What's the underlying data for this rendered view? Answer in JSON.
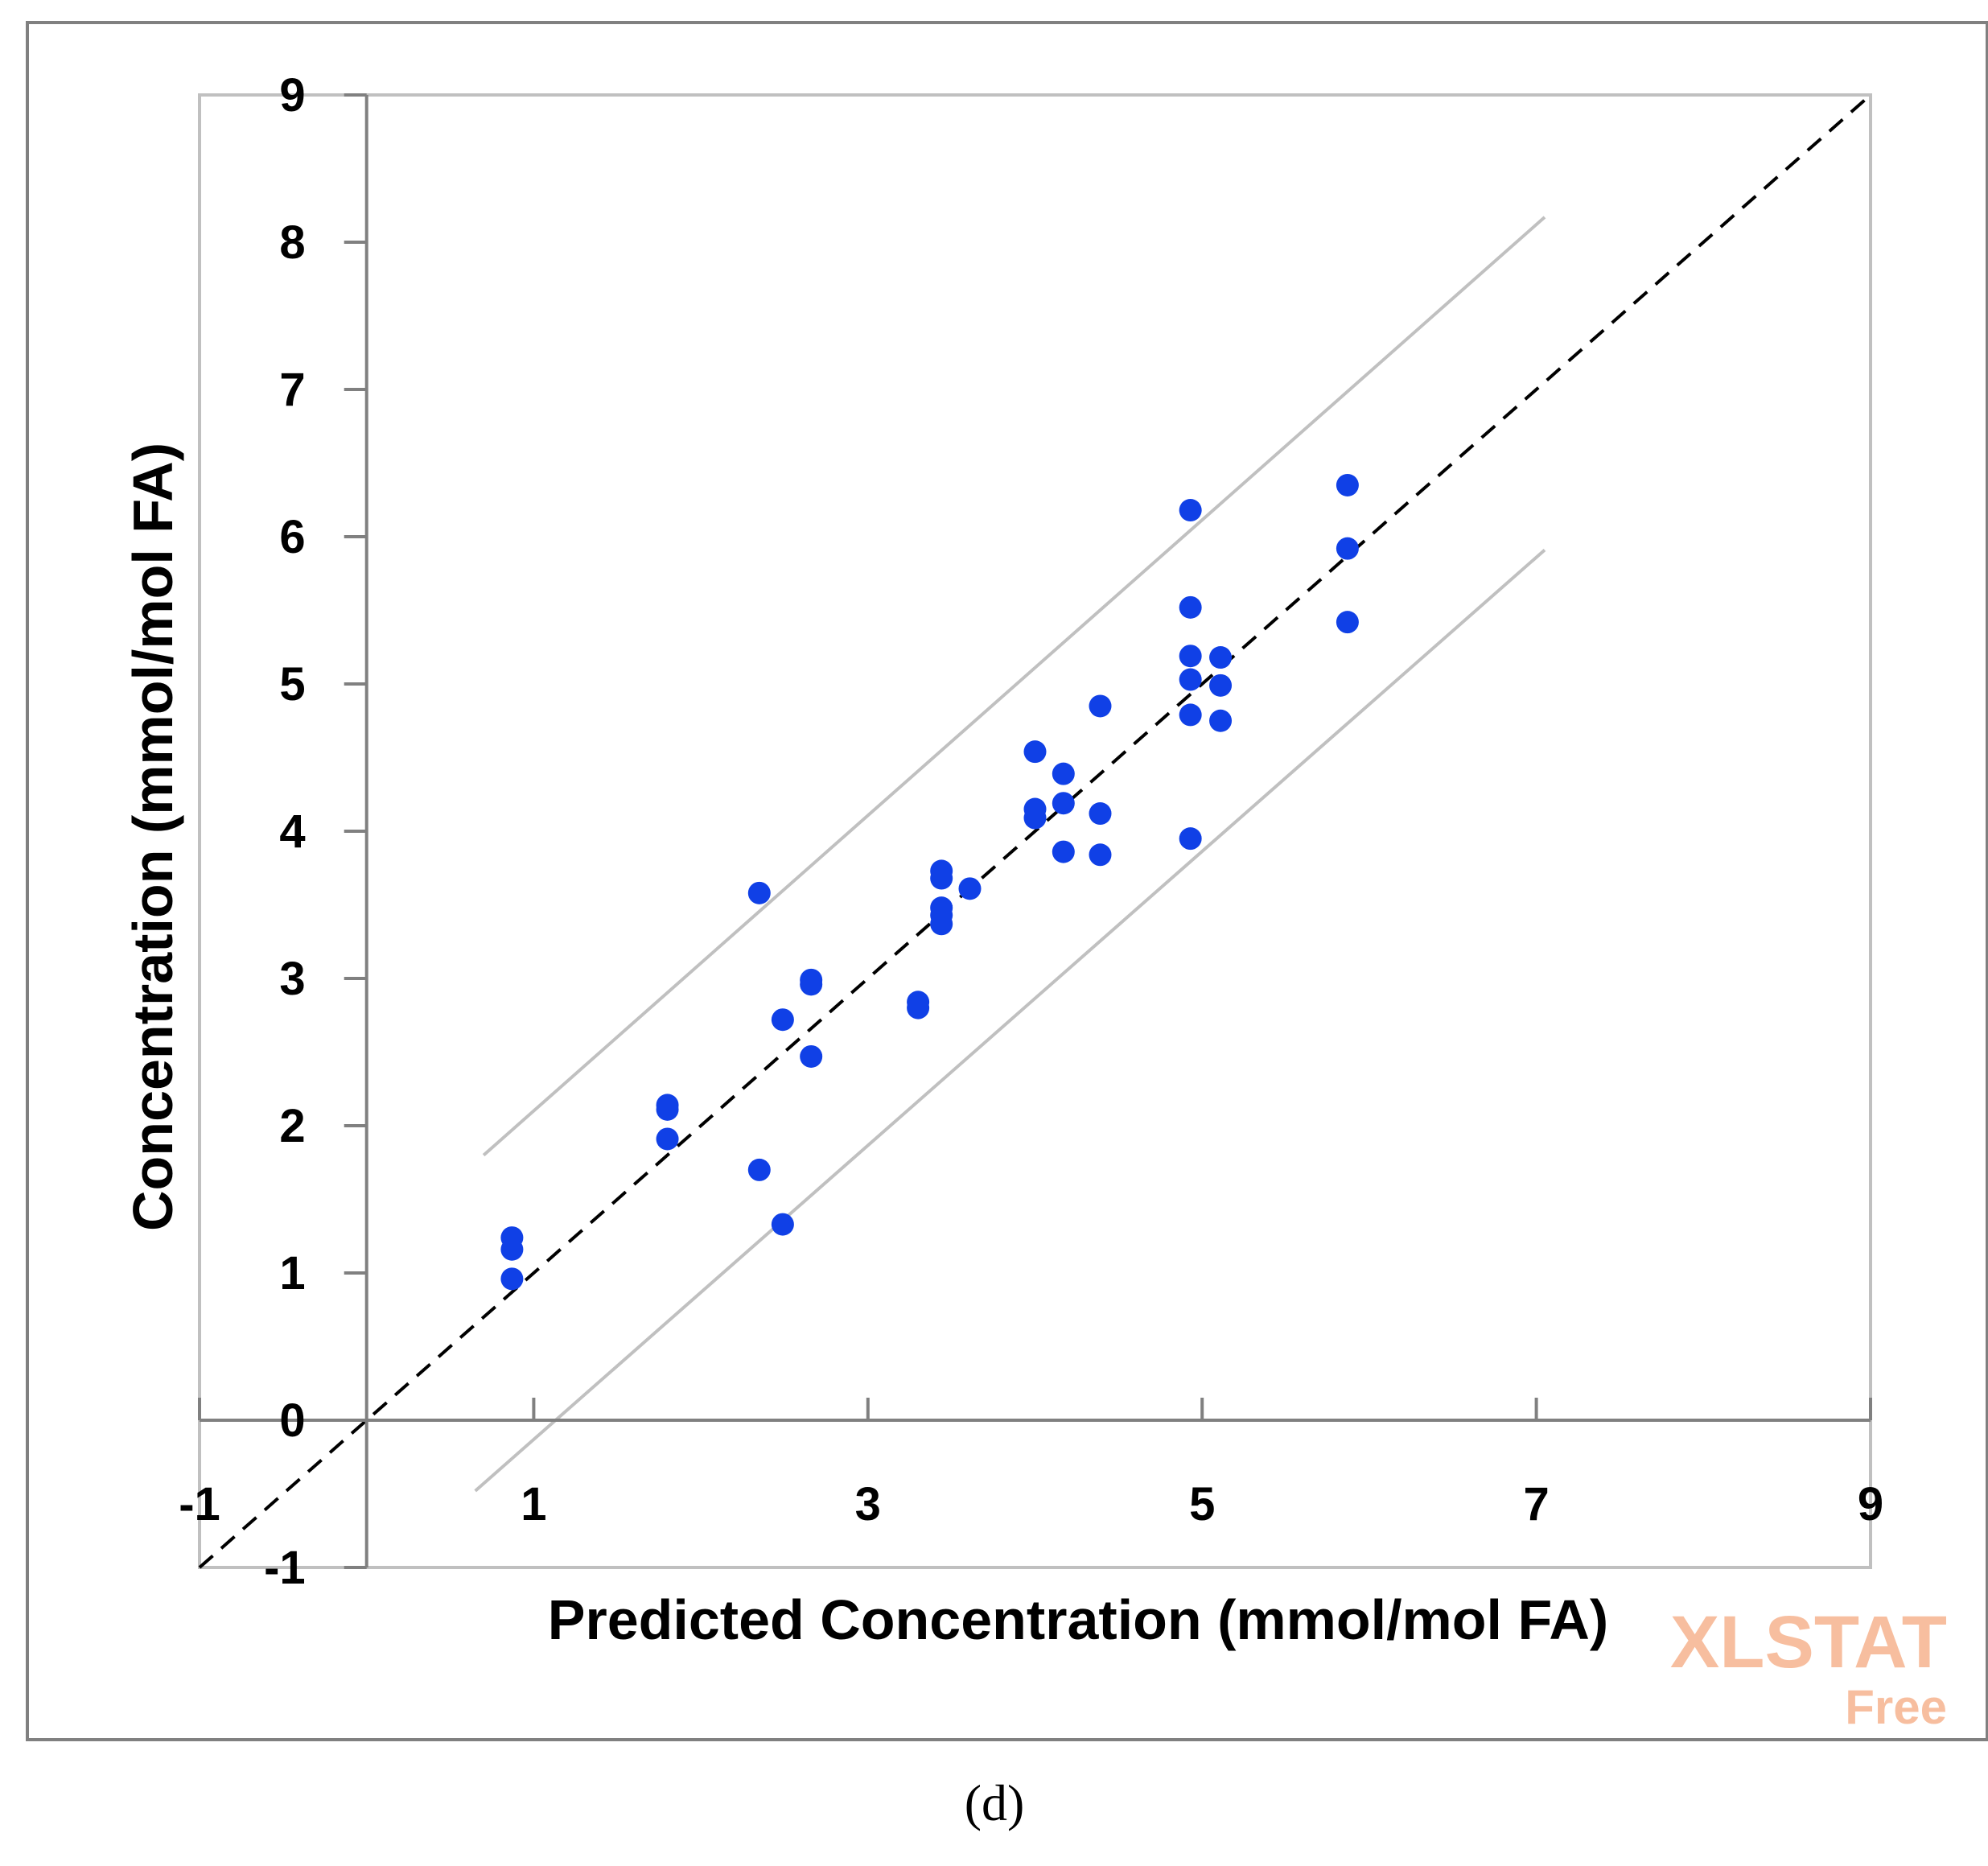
{
  "caption": "(d)",
  "watermark": {
    "brand": "XLSTAT",
    "edition": "Free"
  },
  "colors": {
    "points": "#1040e6",
    "bands": "#c0c0c0",
    "axes": "#808080",
    "frame": "#808080",
    "diagonal": "#000000",
    "watermark": "#f5a97f"
  },
  "chart_data": {
    "type": "scatter",
    "xlabel": "Predicted Concentration (mmol/mol FA)",
    "ylabel": "Concentration (mmol/mol FA)",
    "xlim": [
      -1,
      9
    ],
    "ylim": [
      -1,
      9
    ],
    "x_ticks": [
      -1,
      1,
      3,
      5,
      7,
      9
    ],
    "x_tick_labels": [
      "-1",
      "1",
      "3",
      "5",
      "7",
      "9"
    ],
    "y_ticks": [
      -1,
      0,
      1,
      2,
      3,
      4,
      5,
      6,
      7,
      8,
      9
    ],
    "y_tick_labels": [
      "-1",
      "0",
      "1",
      "2",
      "3",
      "4",
      "5",
      "6",
      "7",
      "8",
      "9"
    ],
    "identity_line": {
      "style": "dashed",
      "from": [
        -1,
        -1
      ],
      "to": [
        9,
        9
      ]
    },
    "confidence_bands": [
      {
        "name": "upper",
        "from": [
          0.7,
          1.8
        ],
        "to": [
          7.05,
          8.17
        ]
      },
      {
        "name": "lower",
        "from": [
          0.65,
          -0.48
        ],
        "to": [
          7.05,
          5.91
        ]
      }
    ],
    "points": [
      {
        "x": 0.87,
        "y": 1.24
      },
      {
        "x": 0.87,
        "y": 1.16
      },
      {
        "x": 0.87,
        "y": 0.96
      },
      {
        "x": 1.8,
        "y": 2.14
      },
      {
        "x": 1.8,
        "y": 2.11
      },
      {
        "x": 1.8,
        "y": 1.91
      },
      {
        "x": 2.35,
        "y": 3.58
      },
      {
        "x": 2.35,
        "y": 1.7
      },
      {
        "x": 2.49,
        "y": 2.72
      },
      {
        "x": 2.49,
        "y": 1.33
      },
      {
        "x": 2.66,
        "y": 2.99
      },
      {
        "x": 2.66,
        "y": 2.96
      },
      {
        "x": 2.66,
        "y": 2.47
      },
      {
        "x": 3.3,
        "y": 2.84
      },
      {
        "x": 3.3,
        "y": 2.8
      },
      {
        "x": 3.44,
        "y": 3.73
      },
      {
        "x": 3.44,
        "y": 3.68
      },
      {
        "x": 3.44,
        "y": 3.48
      },
      {
        "x": 3.44,
        "y": 3.43
      },
      {
        "x": 3.44,
        "y": 3.37
      },
      {
        "x": 3.61,
        "y": 3.61
      },
      {
        "x": 4.0,
        "y": 4.54
      },
      {
        "x": 4.0,
        "y": 4.15
      },
      {
        "x": 4.0,
        "y": 4.09
      },
      {
        "x": 4.17,
        "y": 4.39
      },
      {
        "x": 4.17,
        "y": 4.19
      },
      {
        "x": 4.17,
        "y": 3.86
      },
      {
        "x": 4.39,
        "y": 4.85
      },
      {
        "x": 4.39,
        "y": 4.12
      },
      {
        "x": 4.39,
        "y": 3.84
      },
      {
        "x": 4.93,
        "y": 6.18
      },
      {
        "x": 4.93,
        "y": 5.52
      },
      {
        "x": 4.93,
        "y": 5.19
      },
      {
        "x": 4.93,
        "y": 5.03
      },
      {
        "x": 4.93,
        "y": 4.79
      },
      {
        "x": 4.93,
        "y": 3.95
      },
      {
        "x": 5.11,
        "y": 5.18
      },
      {
        "x": 5.11,
        "y": 4.99
      },
      {
        "x": 5.11,
        "y": 4.75
      },
      {
        "x": 5.87,
        "y": 6.35
      },
      {
        "x": 5.87,
        "y": 5.92
      },
      {
        "x": 5.87,
        "y": 5.42
      }
    ]
  }
}
